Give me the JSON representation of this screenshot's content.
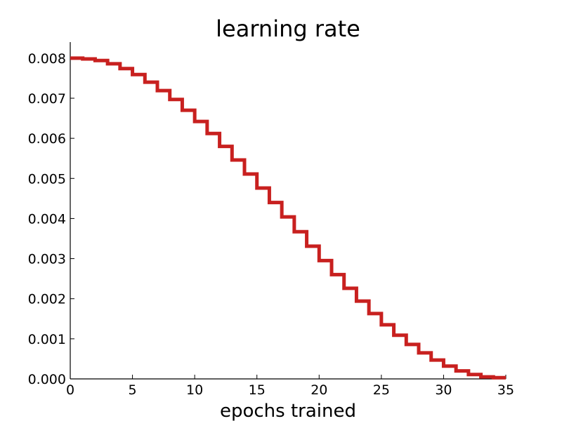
{
  "chart_data": {
    "type": "line",
    "title": "learning rate",
    "xlabel": "epochs trained",
    "ylabel": "",
    "xlim": [
      0,
      35
    ],
    "ylim": [
      0,
      0.0084
    ],
    "grid": false,
    "x_ticks": [
      0,
      5,
      10,
      15,
      20,
      25,
      30,
      35
    ],
    "x_tick_labels": [
      "0",
      "5",
      "10",
      "15",
      "20",
      "25",
      "30",
      "35"
    ],
    "y_ticks": [
      0,
      0.001,
      0.002,
      0.003,
      0.004,
      0.005,
      0.006,
      0.007,
      0.008
    ],
    "y_tick_labels": [
      "0.000",
      "0.001",
      "0.002",
      "0.003",
      "0.004",
      "0.005",
      "0.006",
      "0.007",
      "0.008"
    ],
    "line_color": "#c8201f",
    "series": [
      {
        "step": "post",
        "x": [
          0,
          1,
          2,
          3,
          4,
          5,
          6,
          7,
          8,
          9,
          10,
          11,
          12,
          13,
          14,
          15,
          16,
          17,
          18,
          19,
          20,
          21,
          22,
          23,
          24,
          25,
          26,
          27,
          28,
          29,
          30,
          31,
          32,
          33,
          34,
          35
        ],
        "values": [
          0.008,
          0.00798,
          0.00794,
          0.00786,
          0.00774,
          0.00759,
          0.0074,
          0.00719,
          0.00697,
          0.0067,
          0.00642,
          0.00612,
          0.0058,
          0.00546,
          0.00511,
          0.00476,
          0.0044,
          0.00404,
          0.00367,
          0.00331,
          0.00295,
          0.0026,
          0.00226,
          0.00194,
          0.00163,
          0.00135,
          0.00109,
          0.00086,
          0.00065,
          0.00047,
          0.00032,
          0.0002,
          0.00011,
          5e-05,
          3e-05,
          3e-05
        ]
      }
    ]
  }
}
